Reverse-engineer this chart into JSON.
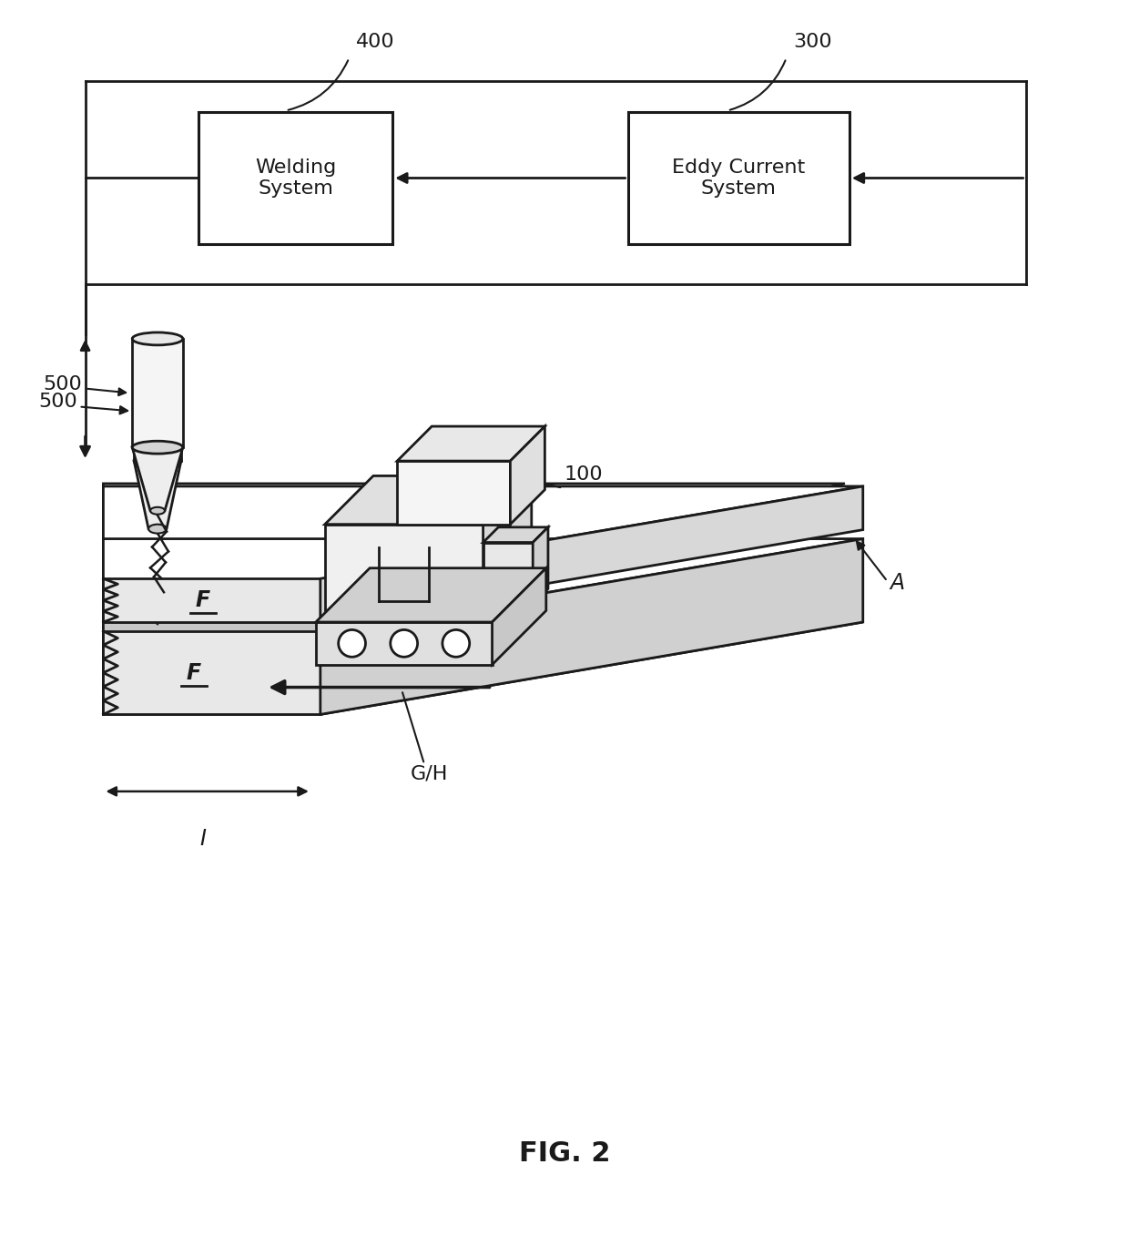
{
  "fig_width": 12.4,
  "fig_height": 13.68,
  "dpi": 100,
  "bg_color": "#ffffff",
  "line_color": "#1a1a1a",
  "text_color": "#1a1a1a",
  "welding_system_label": "Welding\nSystem",
  "eddy_current_label": "Eddy Current\nSystem",
  "label_400": "400",
  "label_300": "300",
  "label_500": "500",
  "label_100": "100",
  "label_F1": "F",
  "label_F2": "F",
  "label_GH": "G/H",
  "label_I": "I",
  "label_A": "A",
  "fig_label": "FIG. 2"
}
